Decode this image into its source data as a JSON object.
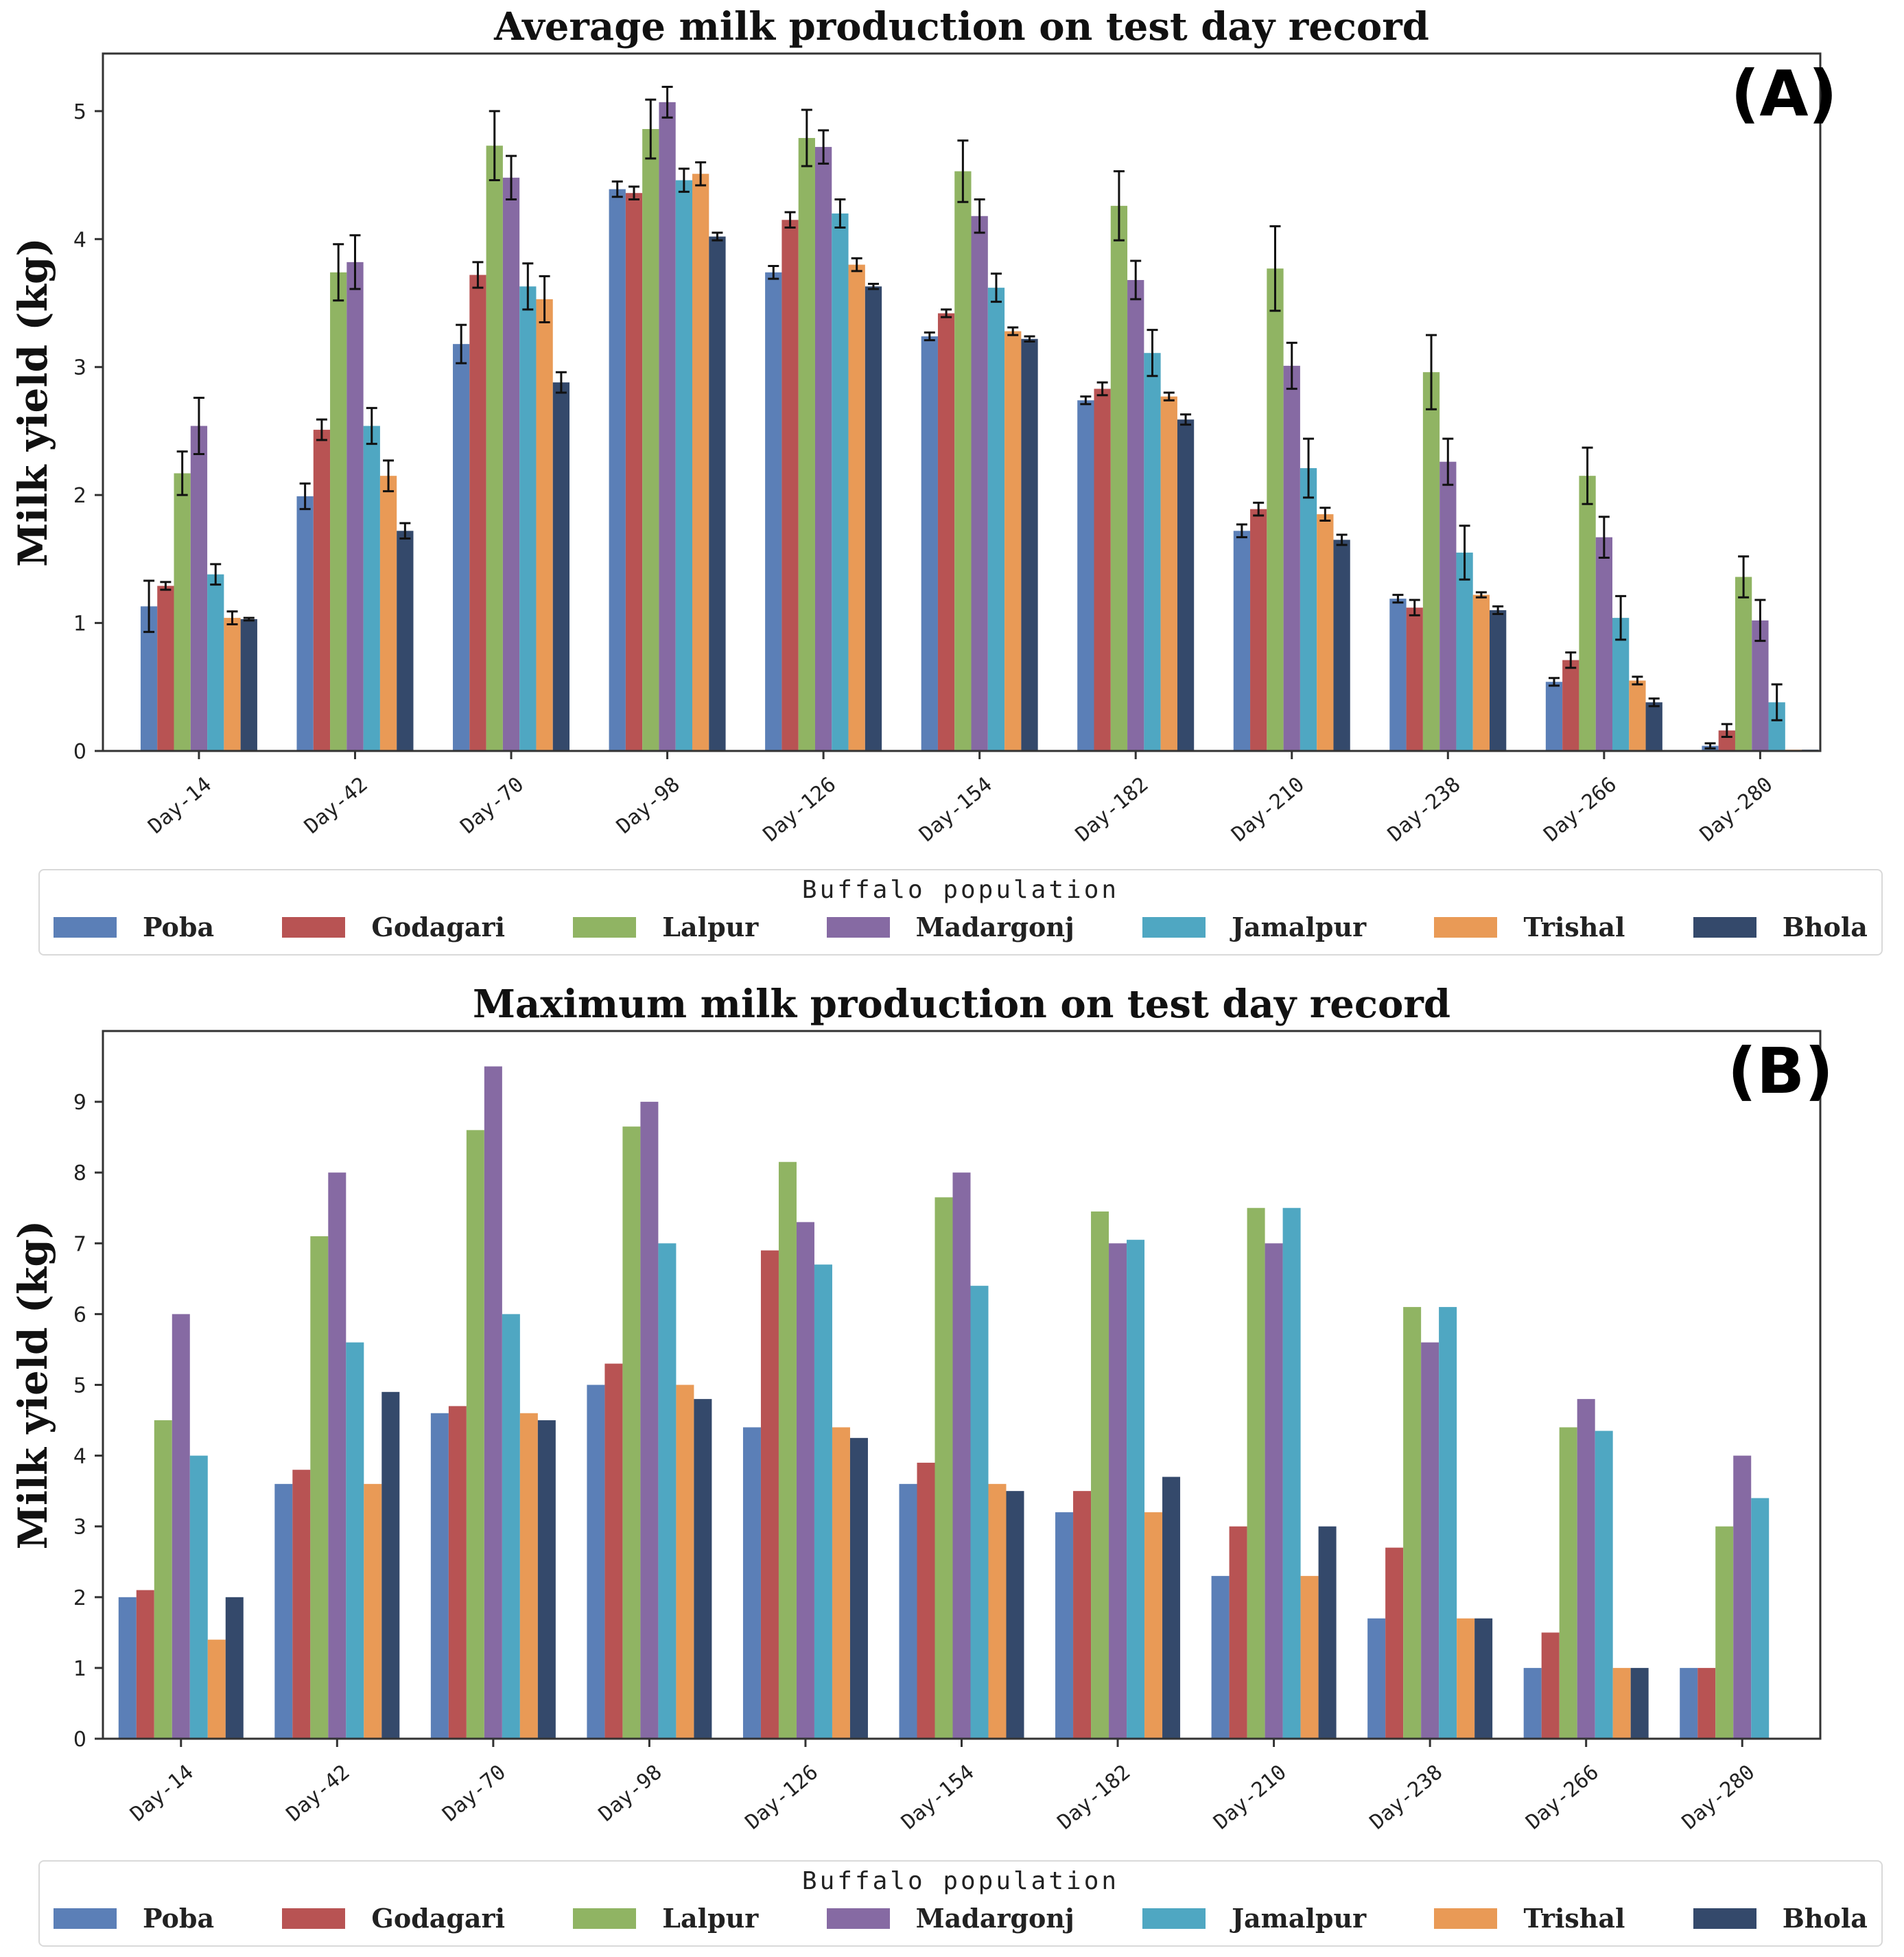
{
  "chart_data": [
    {
      "type": "bar",
      "panel_label": "(A)",
      "title": "Average milk production on test day record",
      "ylabel": "Milk yield (kg)",
      "xlabel": "",
      "ylim": [
        0,
        5.45
      ],
      "yticks": [
        0,
        1,
        2,
        3,
        4,
        5
      ],
      "error_bars": true,
      "categories": [
        "Day-14",
        "Day-42",
        "Day-70",
        "Day-98",
        "Day-126",
        "Day-154",
        "Day-182",
        "Day-210",
        "Day-238",
        "Day-266",
        "Day-280"
      ],
      "series": [
        {
          "name": "Poba",
          "values": [
            1.13,
            1.99,
            3.18,
            4.39,
            3.74,
            3.24,
            2.74,
            1.72,
            1.19,
            0.54,
            0.04
          ],
          "errors": [
            0.2,
            0.1,
            0.15,
            0.06,
            0.05,
            0.03,
            0.03,
            0.05,
            0.03,
            0.03,
            0.02
          ]
        },
        {
          "name": "Godagari",
          "values": [
            1.29,
            2.51,
            3.72,
            4.36,
            4.15,
            3.42,
            2.83,
            1.89,
            1.12,
            0.71,
            0.16
          ],
          "errors": [
            0.03,
            0.08,
            0.1,
            0.05,
            0.06,
            0.03,
            0.05,
            0.05,
            0.06,
            0.06,
            0.05
          ]
        },
        {
          "name": "Lalpur",
          "values": [
            2.17,
            3.74,
            4.73,
            4.86,
            4.79,
            4.53,
            4.26,
            3.77,
            2.96,
            2.15,
            1.36
          ],
          "errors": [
            0.17,
            0.22,
            0.27,
            0.23,
            0.22,
            0.24,
            0.27,
            0.33,
            0.29,
            0.22,
            0.16
          ]
        },
        {
          "name": "Madargonj",
          "values": [
            2.54,
            3.82,
            4.48,
            5.07,
            4.72,
            4.18,
            3.68,
            3.01,
            2.26,
            1.67,
            1.02
          ],
          "errors": [
            0.22,
            0.21,
            0.17,
            0.12,
            0.13,
            0.13,
            0.15,
            0.18,
            0.18,
            0.16,
            0.16
          ]
        },
        {
          "name": "Jamalpur",
          "values": [
            1.38,
            2.54,
            3.63,
            4.46,
            4.2,
            3.62,
            3.11,
            2.21,
            1.55,
            1.04,
            0.38
          ],
          "errors": [
            0.08,
            0.14,
            0.18,
            0.09,
            0.11,
            0.11,
            0.18,
            0.23,
            0.21,
            0.17,
            0.14
          ]
        },
        {
          "name": "Trishal",
          "values": [
            1.04,
            2.15,
            3.53,
            4.51,
            3.8,
            3.28,
            2.77,
            1.85,
            1.22,
            0.55,
            0.01
          ],
          "errors": [
            0.05,
            0.12,
            0.18,
            0.09,
            0.05,
            0.03,
            0.03,
            0.05,
            0.02,
            0.03,
            0.0
          ]
        },
        {
          "name": "Bhola",
          "values": [
            1.03,
            1.72,
            2.88,
            4.02,
            3.63,
            3.22,
            2.59,
            1.65,
            1.1,
            0.38,
            0.01
          ],
          "errors": [
            0.01,
            0.06,
            0.08,
            0.03,
            0.02,
            0.02,
            0.04,
            0.04,
            0.03,
            0.03,
            0.0
          ]
        }
      ],
      "legend": {
        "title": "Buffalo population",
        "placement": "bottom"
      }
    },
    {
      "type": "bar",
      "panel_label": "(B)",
      "title": "Maximum milk production on test day record",
      "ylabel": "Milk yield (kg)",
      "xlabel": "",
      "ylim": [
        0,
        10
      ],
      "yticks": [
        0,
        1,
        2,
        3,
        4,
        5,
        6,
        7,
        8,
        9
      ],
      "error_bars": false,
      "categories": [
        "Day-14",
        "Day-42",
        "Day-70",
        "Day-98",
        "Day-126",
        "Day-154",
        "Day-182",
        "Day-210",
        "Day-238",
        "Day-266",
        "Day-280"
      ],
      "series": [
        {
          "name": "Poba",
          "values": [
            2.0,
            3.6,
            4.6,
            5.0,
            4.4,
            3.6,
            3.2,
            2.3,
            1.7,
            1.0,
            1.0
          ]
        },
        {
          "name": "Godagari",
          "values": [
            2.1,
            3.8,
            4.7,
            5.3,
            6.9,
            3.9,
            3.5,
            3.0,
            2.7,
            1.5,
            1.0
          ]
        },
        {
          "name": "Lalpur",
          "values": [
            4.5,
            7.1,
            8.6,
            8.65,
            8.15,
            7.65,
            7.45,
            7.5,
            6.1,
            4.4,
            3.0
          ]
        },
        {
          "name": "Madargonj",
          "values": [
            6.0,
            8.0,
            9.5,
            9.0,
            7.3,
            8.0,
            7.0,
            7.0,
            5.6,
            4.8,
            4.0
          ]
        },
        {
          "name": "Jamalpur",
          "values": [
            4.0,
            5.6,
            6.0,
            7.0,
            6.7,
            6.4,
            7.05,
            7.5,
            6.1,
            4.35,
            3.4
          ]
        },
        {
          "name": "Trishal",
          "values": [
            1.4,
            3.6,
            4.6,
            5.0,
            4.4,
            3.6,
            3.2,
            2.3,
            1.7,
            1.0,
            0
          ]
        },
        {
          "name": "Bhola",
          "values": [
            2.0,
            4.9,
            4.5,
            4.8,
            4.25,
            3.5,
            3.7,
            3.0,
            1.7,
            1.0,
            0
          ]
        }
      ],
      "legend": {
        "title": "Buffalo population",
        "placement": "bottom"
      }
    }
  ],
  "colors": {
    "Poba": "#5b7fb7",
    "Godagari": "#b85353",
    "Lalpur": "#90b463",
    "Madargonj": "#866aa3",
    "Jamalpur": "#4fa7c2",
    "Trishal": "#e99a56",
    "Bhola": "#34496b"
  }
}
